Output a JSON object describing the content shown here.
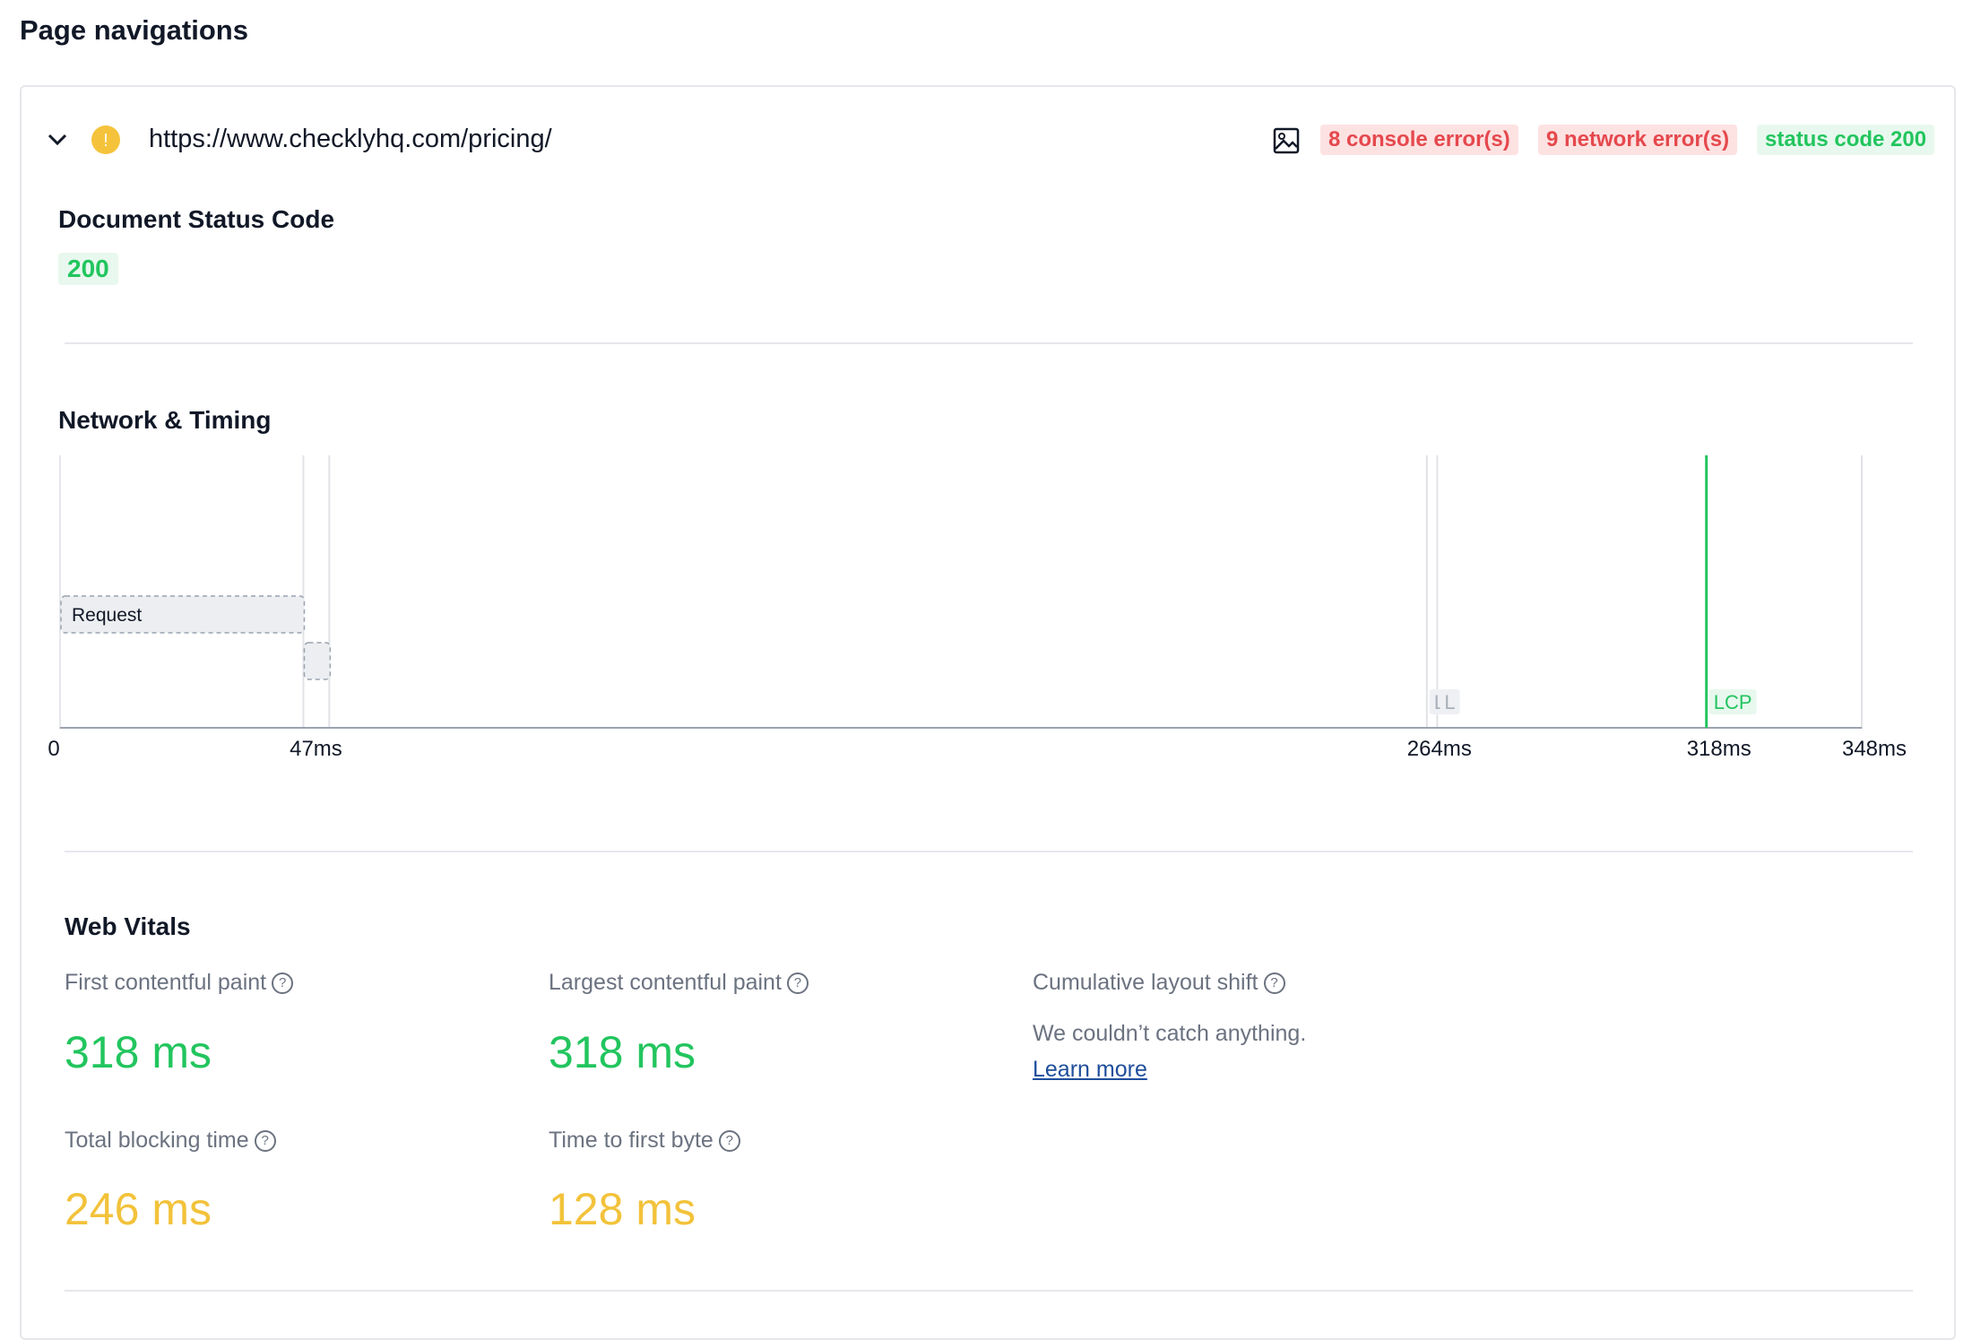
{
  "header": {
    "title": "Page navigations"
  },
  "navigation": {
    "url": "https://www.checklyhq.com/pricing/",
    "badges": [
      {
        "text": "8 console error(s)",
        "color": "#e5484d",
        "background": "#fde2e2"
      },
      {
        "text": "9 network error(s)",
        "color": "#e5484d",
        "background": "#fde2e2"
      },
      {
        "text": "status code 200",
        "color": "#22c55e",
        "background": "#e8f8ee"
      }
    ]
  },
  "status": {
    "title": "Document Status Code",
    "code": "200"
  },
  "timing": {
    "title": "Network & Timing",
    "xlim": [
      0,
      348
    ],
    "xticks": [
      {
        "value": 0,
        "label": "0"
      },
      {
        "value": 47,
        "label": "47ms"
      },
      {
        "value": 264,
        "label": "264ms"
      },
      {
        "value": 318,
        "label": "318ms"
      },
      {
        "value": 348,
        "label": "348ms"
      }
    ],
    "request": {
      "label": "Request",
      "start": 0,
      "end": 47
    },
    "response": {
      "start": 47,
      "end": 52
    },
    "lines": [
      47,
      52,
      264,
      266,
      348
    ],
    "markers": [
      {
        "label": "L",
        "value": 264
      },
      {
        "label": "L",
        "value": 266
      },
      {
        "label": "LCP",
        "value": 318,
        "color": "#22c55e"
      }
    ]
  },
  "web_vitals": {
    "title": "Web Vitals",
    "metrics": [
      {
        "label": "First contentful paint",
        "value": "318 ms",
        "color": "#22c55e"
      },
      {
        "label": "Largest contentful paint",
        "value": "318 ms",
        "color": "#22c55e"
      },
      {
        "label": "Total blocking time",
        "value": "246 ms",
        "color": "#f2c23a"
      },
      {
        "label": "Time to first byte",
        "value": "128 ms",
        "color": "#f2c23a"
      }
    ],
    "cls": {
      "label": "Cumulative layout shift",
      "message": "We couldn’t catch anything.",
      "link": "Learn more"
    }
  }
}
